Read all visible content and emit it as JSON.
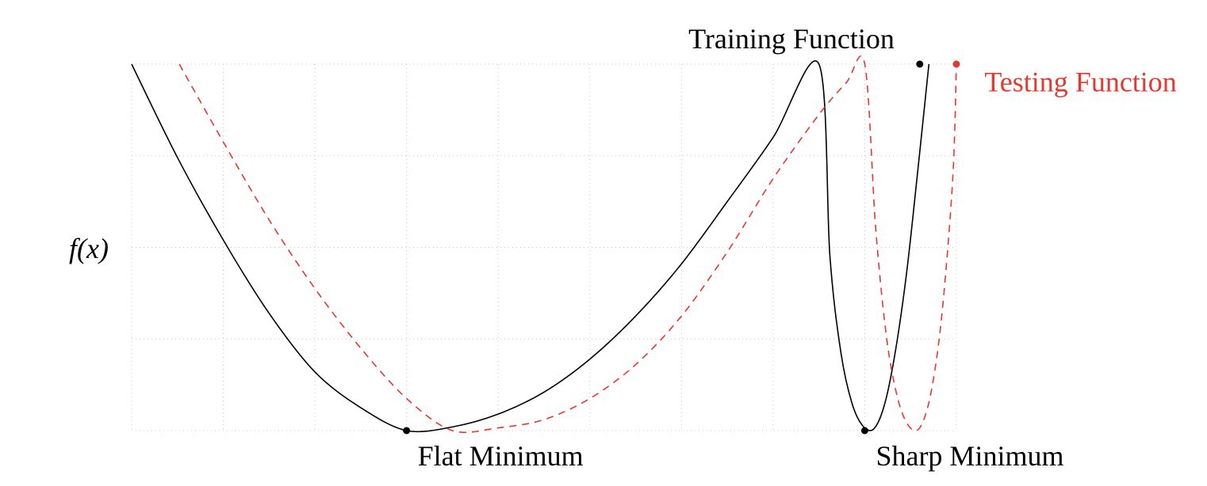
{
  "chart_data": {
    "type": "line",
    "title": "",
    "xlabel": "",
    "ylabel": "f(x)",
    "grid": true,
    "xlim": [
      0,
      9
    ],
    "ylim": [
      0,
      4
    ],
    "colors": {
      "training": "#000000",
      "testing": "#e5392f"
    },
    "series": [
      {
        "name": "Training Function",
        "line_style": "solid",
        "x": [
          0.0,
          0.5,
          1.0,
          1.5,
          2.0,
          2.5,
          3.0,
          3.5,
          4.0,
          4.5,
          5.0,
          5.5,
          6.0,
          6.5,
          7.0,
          7.5,
          7.62,
          7.74,
          7.86,
          7.98,
          8.1,
          8.22,
          8.34,
          8.46,
          8.58,
          8.7
        ],
        "y": [
          4.0,
          2.98,
          2.08,
          1.28,
          0.64,
          0.25,
          0.0,
          0.04,
          0.18,
          0.42,
          0.78,
          1.25,
          1.82,
          2.5,
          3.2,
          4.0,
          1.9,
          0.85,
          0.3,
          0.05,
          0.02,
          0.3,
          0.9,
          1.75,
          2.85,
          4.0
        ],
        "markers": [
          {
            "x": 3.0,
            "y": 0.0
          },
          {
            "x": 8.0,
            "y": 0.0
          },
          {
            "x": 8.6,
            "y": 4.0
          }
        ]
      },
      {
        "name": "Testing Function",
        "line_style": "dashed",
        "x": [
          0.52,
          1.0,
          1.5,
          2.0,
          2.5,
          3.0,
          3.5,
          4.0,
          4.5,
          5.0,
          5.5,
          6.0,
          6.5,
          7.0,
          7.5,
          7.8,
          8.0,
          8.12,
          8.24,
          8.36,
          8.48,
          8.6,
          8.72,
          8.84,
          8.96,
          9.0
        ],
        "y": [
          4.0,
          3.15,
          2.3,
          1.55,
          0.9,
          0.35,
          0.0,
          0.03,
          0.12,
          0.35,
          0.72,
          1.25,
          1.95,
          2.75,
          3.45,
          3.8,
          4.0,
          2.2,
          1.0,
          0.35,
          0.05,
          0.03,
          0.4,
          1.25,
          2.75,
          4.0
        ],
        "markers": [
          {
            "x": 9.0,
            "y": 4.0
          }
        ]
      }
    ],
    "annotations": [
      {
        "text": "Training Function",
        "x": 7.2,
        "y": 4.0,
        "position": "above",
        "color": "#000000"
      },
      {
        "text": "Testing Function",
        "x": 9.15,
        "y": 3.7,
        "position": "right",
        "color": "#e5392f"
      },
      {
        "text": "Flat Minimum",
        "x": 3.0,
        "y": 0.0,
        "position": "below-right",
        "color": "#000000"
      },
      {
        "text": "Sharp Minimum",
        "x": 8.0,
        "y": 0.0,
        "position": "below-right",
        "color": "#000000"
      }
    ]
  }
}
